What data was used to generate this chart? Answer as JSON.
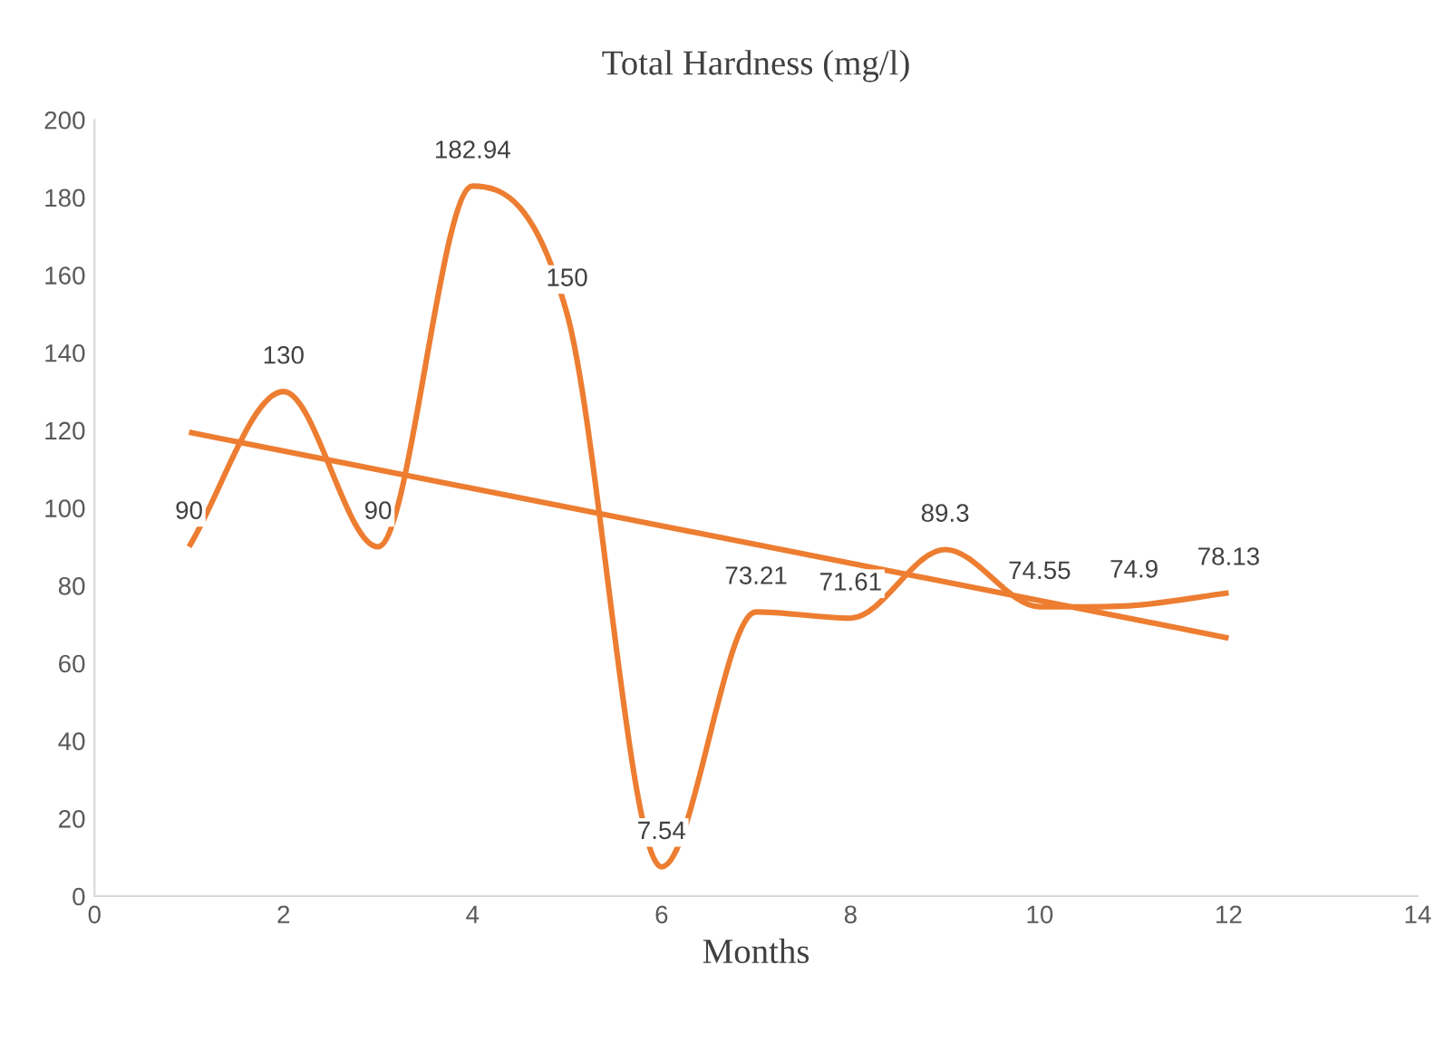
{
  "chart_data": {
    "type": "line",
    "title": "Total Hardness (mg/l)",
    "xlabel": "Months",
    "xlim": [
      0,
      14
    ],
    "xticks": [
      0,
      2,
      4,
      6,
      8,
      10,
      12,
      14
    ],
    "ylim": [
      0,
      200
    ],
    "yticks": [
      0,
      20,
      40,
      60,
      80,
      100,
      120,
      140,
      160,
      180,
      200
    ],
    "grid": false,
    "legend": false,
    "marker": "none",
    "line_style": "solid",
    "series": [
      {
        "color": "#ed7d31",
        "x": [
          1,
          2,
          3,
          4,
          5,
          6,
          7,
          8,
          9,
          10,
          11,
          12
        ],
        "values": [
          90,
          130,
          90,
          182.94,
          150,
          7.54,
          73.21,
          71.61,
          89.3,
          74.55,
          74.9,
          78.13
        ],
        "value_labels": [
          "90",
          "130",
          "90",
          "182.94",
          "150",
          "7.54",
          "73.21",
          "71.61",
          "89.3",
          "74.55",
          "74.9",
          "78.13"
        ]
      },
      {
        "color": "#ed7d31",
        "x": [
          1,
          12
        ],
        "values": [
          119.5,
          66.5
        ]
      }
    ]
  }
}
